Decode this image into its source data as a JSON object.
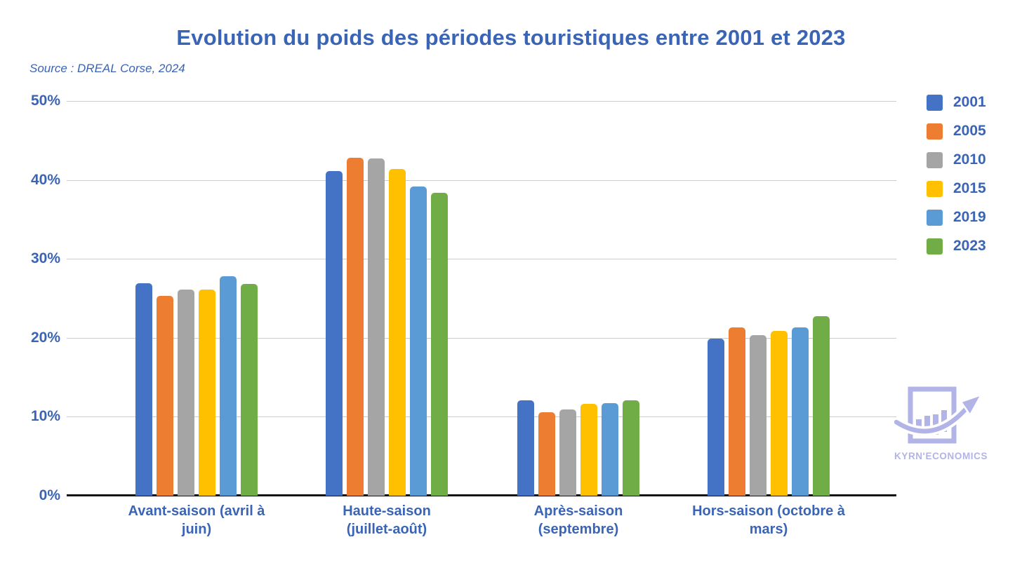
{
  "header": {
    "title": "Evolution du poids des périodes touristiques entre 2001 et 2023",
    "source": "Source : DREAL Corse, 2024"
  },
  "colors": {
    "title_text": "#3A64B5",
    "axis_text": "#3A64B5",
    "gridline": "#CBCBCB",
    "axis_line": "#111111",
    "logo_lavender": "#B2B4E7"
  },
  "chart_data": {
    "type": "bar",
    "title": "Evolution du poids des périodes touristiques entre 2001 et 2023",
    "source": "Source : DREAL Corse, 2024",
    "categories": [
      "Avant-saison (avril à juin)",
      "Haute-saison (juillet-août)",
      "Après-saison (septembre)",
      "Hors-saison (octobre à mars)"
    ],
    "category_tick_lines": [
      [
        "Avant-saison (avril à",
        "juin)"
      ],
      [
        "Haute-saison",
        "(juillet-août)"
      ],
      [
        "Après-saison",
        "(septembre)"
      ],
      [
        "Hors-saison (octobre à",
        "mars)"
      ]
    ],
    "series": [
      {
        "name": "2001",
        "color": "#4472C4",
        "values": [
          26.9,
          41.1,
          12.1,
          19.9
        ]
      },
      {
        "name": "2005",
        "color": "#ED7D31",
        "values": [
          25.3,
          42.8,
          10.6,
          21.3
        ]
      },
      {
        "name": "2010",
        "color": "#A5A5A5",
        "values": [
          26.1,
          42.7,
          10.9,
          20.3
        ]
      },
      {
        "name": "2015",
        "color": "#FFC000",
        "values": [
          26.1,
          41.4,
          11.6,
          20.9
        ]
      },
      {
        "name": "2019",
        "color": "#5B9BD5",
        "values": [
          27.8,
          39.2,
          11.7,
          21.3
        ]
      },
      {
        "name": "2023",
        "color": "#70AD47",
        "values": [
          26.8,
          38.4,
          12.1,
          22.7
        ]
      }
    ],
    "xlabel": "",
    "ylabel": "",
    "ylim": [
      0,
      50
    ],
    "ytick_step": 10,
    "yticks": [
      "0%",
      "10%",
      "20%",
      "30%",
      "40%",
      "50%"
    ],
    "grid": true,
    "legend_position": "right"
  },
  "logo": {
    "text": "KYRN'ECONOMICS"
  }
}
